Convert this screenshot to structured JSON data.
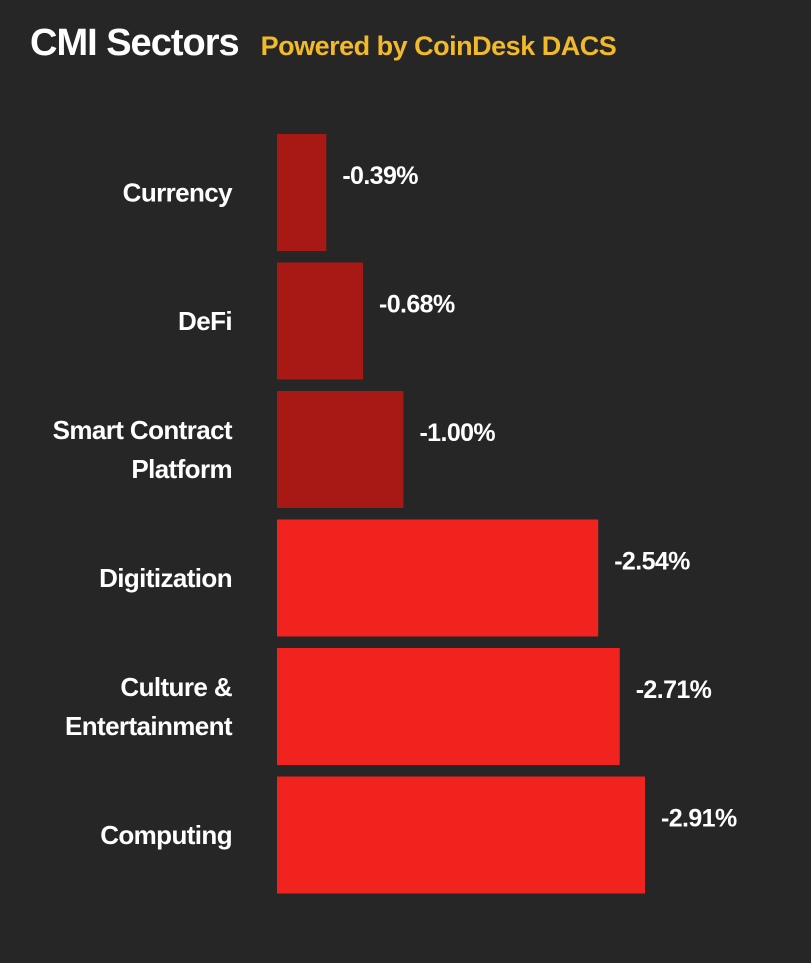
{
  "header": {
    "title": "CMI Sectors",
    "subtitle": "Powered by CoinDesk DACS"
  },
  "colors": {
    "background": "#262626",
    "subtitle": "#f2b928",
    "bar_dark": "#a81814",
    "bar_bright": "#f0231e"
  },
  "chart_data": {
    "type": "bar",
    "orientation": "horizontal",
    "title": "CMI Sectors",
    "subtitle": "Powered by CoinDesk DACS",
    "categories": [
      [
        "Currency"
      ],
      [
        "DeFi"
      ],
      [
        "Smart Contract",
        "Platform"
      ],
      [
        "Digitization"
      ],
      [
        "Culture &",
        "Entertainment"
      ],
      [
        "Computing"
      ]
    ],
    "values": [
      -0.39,
      -0.68,
      -1.0,
      -2.54,
      -2.71,
      -2.91
    ],
    "value_labels": [
      "-0.39%",
      "-0.68%",
      "-1.00%",
      "-2.54%",
      "-2.71%",
      "-2.91%"
    ],
    "bar_colors": [
      "#a81814",
      "#a81814",
      "#a81814",
      "#f0231e",
      "#f0231e",
      "#f0231e"
    ],
    "xlim": [
      0,
      -2.91
    ],
    "grid": false,
    "legend": false
  }
}
